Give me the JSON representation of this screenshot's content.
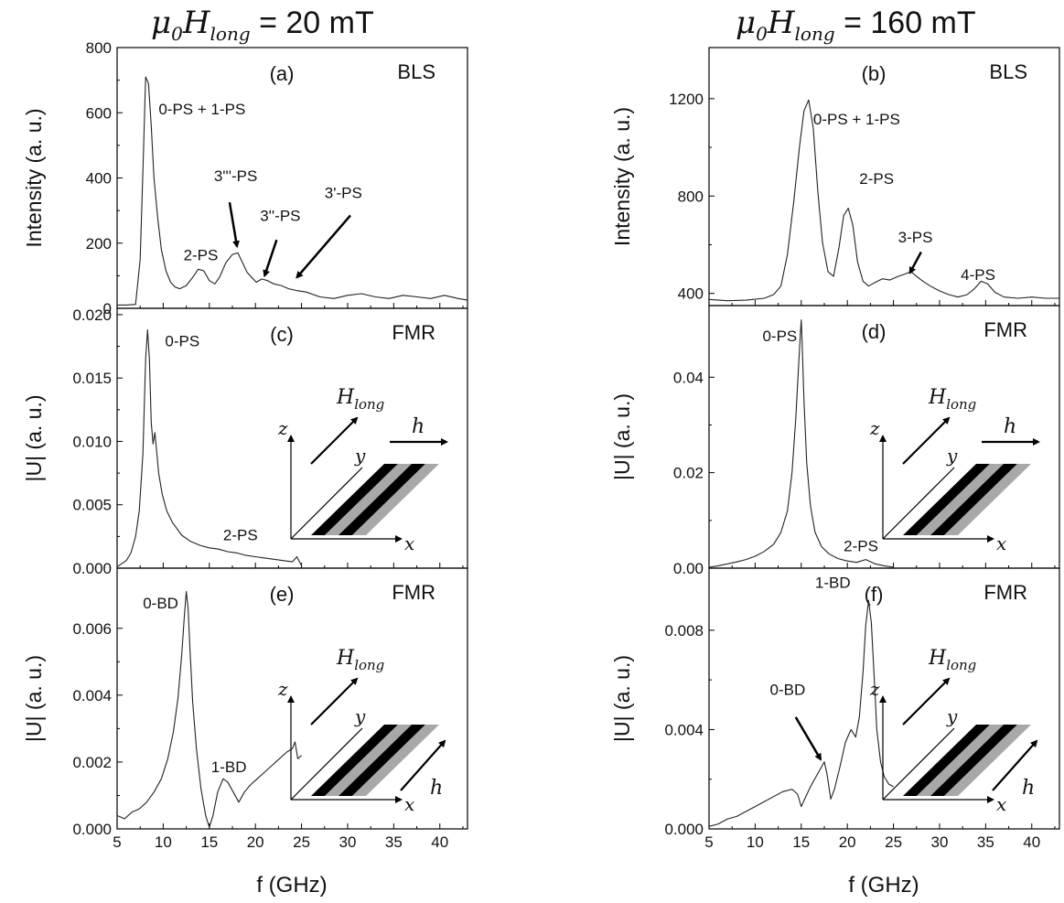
{
  "headings": {
    "left": {
      "mu": "μ",
      "sub0": "0",
      "H": "H",
      "sub": "long",
      "rest": " = 20 mT"
    },
    "right": {
      "mu": "μ",
      "sub0": "0",
      "H": "H",
      "sub": "long",
      "rest": " = 160 mT"
    }
  },
  "xlabel": "f (GHz)",
  "inset_labels": {
    "z": "z",
    "y": "y",
    "x": "x",
    "H": "H",
    "H_sub": "long",
    "h": "h"
  },
  "colors": {
    "line": "#222222",
    "stripe_dark": "#000000",
    "stripe_light": "#a8a8a8"
  },
  "chart_data": [
    {
      "id": "a",
      "type": "line",
      "panel_label": "(a)",
      "technique": "BLS",
      "ylabel": "Intensity (a. u.)",
      "xlim": [
        5,
        43
      ],
      "ylim": [
        0,
        800
      ],
      "xticks": [
        5,
        10,
        15,
        20,
        25,
        30,
        35,
        40
      ],
      "yticks": [
        0,
        200,
        400,
        600,
        800
      ],
      "ytick_labels": [
        "0",
        "200",
        "400",
        "600",
        "800"
      ],
      "series": [
        {
          "x": [
            5,
            6,
            7,
            7.5,
            7.8,
            8.1,
            8.4,
            8.7,
            9.0,
            9.4,
            9.8,
            10.3,
            10.8,
            11.3,
            11.8,
            12.5,
            13.2,
            13.8,
            14.4,
            15.0,
            15.6,
            16.1,
            16.8,
            17.5,
            18.1,
            18.6,
            19.1,
            19.6,
            20.1,
            20.7,
            21.3,
            22.0,
            22.8,
            23.6,
            24.4,
            25.5,
            27.0,
            28.5,
            30.0,
            31.5,
            33.0,
            34.5,
            36.0,
            37.5,
            39.0,
            40.5,
            42.0,
            43.0
          ],
          "y": [
            10,
            10,
            12,
            150,
            420,
            710,
            690,
            560,
            400,
            280,
            180,
            115,
            80,
            65,
            60,
            70,
            95,
            120,
            115,
            85,
            75,
            95,
            140,
            165,
            170,
            140,
            110,
            95,
            80,
            90,
            85,
            75,
            70,
            60,
            55,
            50,
            35,
            30,
            40,
            45,
            35,
            30,
            40,
            35,
            30,
            40,
            30,
            25
          ]
        }
      ],
      "annotations": [
        {
          "text": "0-PS + 1-PS",
          "x": 9.5,
          "y": 595
        },
        {
          "text": "2-PS",
          "x": 12.2,
          "y": 148
        },
        {
          "text": "3'''-PS",
          "x": 15.5,
          "y": 390,
          "arrow_to": [
            18.0,
            190
          ],
          "arrow_from": [
            17.2,
            325
          ]
        },
        {
          "text": "3''-PS",
          "x": 20.5,
          "y": 268,
          "arrow_to": [
            21.0,
            100
          ],
          "arrow_from": [
            22.3,
            210
          ]
        },
        {
          "text": "3'-PS",
          "x": 27.5,
          "y": 338,
          "arrow_to": [
            24.5,
            95
          ],
          "arrow_from": [
            30.3,
            285
          ]
        }
      ]
    },
    {
      "id": "b",
      "type": "line",
      "panel_label": "(b)",
      "technique": "BLS",
      "ylabel": "Intensity (a. u.)",
      "xlim": [
        5,
        43
      ],
      "ylim": [
        350,
        1410
      ],
      "xticks": [
        5,
        10,
        15,
        20,
        25,
        30,
        35,
        40
      ],
      "yticks": [
        400,
        800,
        1200
      ],
      "ytick_labels": [
        "400",
        "800",
        "1200"
      ],
      "series": [
        {
          "x": [
            5,
            7,
            9,
            11,
            12,
            12.8,
            13.5,
            14.2,
            14.8,
            15.3,
            15.8,
            16.3,
            16.8,
            17.3,
            17.9,
            18.5,
            19.1,
            19.6,
            20.1,
            20.6,
            21.1,
            21.7,
            22.3,
            23.0,
            23.8,
            24.6,
            25.5,
            26.3,
            26.9,
            27.5,
            28.2,
            29.0,
            30.0,
            31.0,
            32.0,
            33.0,
            33.8,
            34.5,
            35.2,
            36.0,
            37.0,
            38.5,
            40.0,
            41.5,
            43.0
          ],
          "y": [
            375,
            370,
            372,
            380,
            395,
            430,
            560,
            780,
            1000,
            1150,
            1195,
            1080,
            820,
            610,
            490,
            470,
            590,
            720,
            750,
            680,
            530,
            450,
            430,
            445,
            460,
            455,
            470,
            480,
            490,
            470,
            450,
            430,
            410,
            395,
            385,
            395,
            420,
            450,
            440,
            405,
            385,
            380,
            385,
            380,
            380
          ]
        }
      ],
      "annotations": [
        {
          "text": "0-PS + 1-PS",
          "x": 16.3,
          "y": 1095
        },
        {
          "text": "2-PS",
          "x": 21.3,
          "y": 850
        },
        {
          "text": "3-PS",
          "x": 25.5,
          "y": 610,
          "arrow_to": [
            26.8,
            485
          ],
          "arrow_from": [
            28.0,
            570
          ]
        },
        {
          "text": "4-PS",
          "x": 32.3,
          "y": 455
        }
      ]
    },
    {
      "id": "c",
      "type": "line",
      "panel_label": "(c)",
      "technique": "FMR",
      "ylabel": "|U| (a. u.)",
      "xlim": [
        5,
        43
      ],
      "ylim": [
        0,
        0.0205
      ],
      "xticks": [
        5,
        10,
        15,
        20,
        25,
        30,
        35,
        40
      ],
      "yticks": [
        0,
        0.005,
        0.01,
        0.015,
        0.02
      ],
      "ytick_labels": [
        "0.000",
        "0.005",
        "0.010",
        "0.015",
        "0.020"
      ],
      "series": [
        {
          "x": [
            5,
            6,
            6.5,
            7,
            7.4,
            7.8,
            8.1,
            8.3,
            8.5,
            8.7,
            8.9,
            9.1,
            9.3,
            9.5,
            9.9,
            10.4,
            11.0,
            12.0,
            13.0,
            14.0,
            15.0,
            16.0,
            17.0,
            18.0,
            19.0,
            20.0,
            21.0,
            22.0,
            23.0,
            24.0,
            24.5,
            25.0
          ],
          "y": [
            0.0001,
            0.0006,
            0.0012,
            0.0025,
            0.0045,
            0.009,
            0.0165,
            0.0188,
            0.0165,
            0.0115,
            0.0098,
            0.0107,
            0.0092,
            0.0075,
            0.0058,
            0.0045,
            0.0036,
            0.0026,
            0.0021,
            0.0018,
            0.0016,
            0.0015,
            0.0013,
            0.0012,
            0.001,
            0.0009,
            0.0008,
            0.0007,
            0.0006,
            0.0005,
            0.0009,
            0.0002
          ]
        }
      ],
      "annotations": [
        {
          "text": "0-PS",
          "x": 10.2,
          "y": 0.0175
        },
        {
          "text": "2-PS",
          "x": 16.5,
          "y": 0.0022
        }
      ],
      "inset": "h-along-x"
    },
    {
      "id": "d",
      "type": "line",
      "panel_label": "(d)",
      "technique": "FMR",
      "ylabel": "|U| (a. u.)",
      "xlim": [
        5,
        43
      ],
      "ylim": [
        0,
        0.055
      ],
      "xticks": [
        5,
        10,
        15,
        20,
        25,
        30,
        35,
        40
      ],
      "yticks": [
        0,
        0.02,
        0.04
      ],
      "ytick_labels": [
        "0.00",
        "0.02",
        "0.04"
      ],
      "series": [
        {
          "x": [
            5,
            6,
            7,
            8,
            9,
            10,
            11,
            12,
            12.8,
            13.5,
            14.0,
            14.4,
            14.7,
            14.9,
            15.0,
            15.1,
            15.3,
            15.6,
            16.0,
            16.5,
            17.2,
            18.0,
            19.0,
            20.0,
            21.0,
            22.0,
            23.0,
            24.0,
            25.0
          ],
          "y": [
            0.0002,
            0.0005,
            0.0009,
            0.0013,
            0.0018,
            0.0025,
            0.0035,
            0.005,
            0.0075,
            0.012,
            0.02,
            0.031,
            0.042,
            0.049,
            0.052,
            0.047,
            0.035,
            0.022,
            0.013,
            0.0075,
            0.0045,
            0.003,
            0.002,
            0.0015,
            0.0012,
            0.0018,
            0.0009,
            0.0005,
            0.0002
          ]
        }
      ],
      "annotations": [
        {
          "text": "0-PS",
          "x": 10.8,
          "y": 0.0475
        },
        {
          "text": "2-PS",
          "x": 19.6,
          "y": 0.0035
        }
      ],
      "inset": "h-along-x"
    },
    {
      "id": "e",
      "type": "line",
      "panel_label": "(e)",
      "technique": "FMR",
      "ylabel": "|U| (a. u.)",
      "xlim": [
        5,
        43
      ],
      "ylim": [
        0,
        0.0078
      ],
      "xticks": [
        5,
        10,
        15,
        20,
        25,
        30,
        35,
        40
      ],
      "yticks": [
        0,
        0.002,
        0.004,
        0.006
      ],
      "ytick_labels": [
        "0.000",
        "0.002",
        "0.004",
        "0.006"
      ],
      "series": [
        {
          "x": [
            5,
            5.8,
            6.6,
            7.4,
            8.2,
            9.0,
            9.8,
            10.5,
            11.1,
            11.6,
            12.0,
            12.3,
            12.5,
            12.7,
            12.9,
            13.2,
            13.6,
            14.1,
            14.6,
            15.0,
            15.4,
            15.9,
            16.5,
            17.0,
            17.6,
            18.2,
            18.8,
            19.4,
            20.2,
            21.0,
            21.8,
            22.6,
            23.4,
            24.0,
            24.3,
            24.6,
            25.0
          ],
          "y": [
            0.0004,
            0.0003,
            0.0005,
            0.0006,
            0.0008,
            0.0011,
            0.0015,
            0.0021,
            0.0029,
            0.0039,
            0.0052,
            0.0064,
            0.0071,
            0.0066,
            0.0054,
            0.0038,
            0.0024,
            0.0012,
            0.0004,
            5e-05,
            0.0004,
            0.0011,
            0.0015,
            0.0014,
            0.0011,
            0.0008,
            0.0011,
            0.0013,
            0.0015,
            0.0017,
            0.0019,
            0.0021,
            0.0023,
            0.0024,
            0.0026,
            0.0021,
            0.0022
          ]
        }
      ],
      "annotations": [
        {
          "text": "0-BD",
          "x": 7.8,
          "y": 0.0066
        },
        {
          "text": "1-BD",
          "x": 15.2,
          "y": 0.0017
        }
      ],
      "inset": "h-along-y"
    },
    {
      "id": "f",
      "type": "line",
      "panel_label": "(f)",
      "technique": "FMR",
      "ylabel": "|U| (a. u.)",
      "xlim": [
        5,
        43
      ],
      "ylim": [
        0,
        0.0105
      ],
      "xticks": [
        5,
        10,
        15,
        20,
        25,
        30,
        35,
        40
      ],
      "yticks": [
        0,
        0.004,
        0.008
      ],
      "ytick_labels": [
        "0.000",
        "0.004",
        "0.008"
      ],
      "series": [
        {
          "x": [
            5,
            6,
            7,
            8,
            9,
            10,
            11,
            12,
            13,
            14,
            14.6,
            15.0,
            15.5,
            16.0,
            16.6,
            17.2,
            17.5,
            17.8,
            18.2,
            18.6,
            19.2,
            19.8,
            20.4,
            20.9,
            21.3,
            21.7,
            22.0,
            22.3,
            22.6,
            22.9,
            23.2,
            23.6,
            24.0,
            24.5,
            25.0
          ],
          "y": [
            0.0001,
            0.0002,
            0.0004,
            0.0005,
            0.0007,
            0.0009,
            0.0011,
            0.0013,
            0.0015,
            0.0016,
            0.0014,
            0.0009,
            0.0013,
            0.0017,
            0.0021,
            0.0025,
            0.0027,
            0.0022,
            0.0012,
            0.0016,
            0.0025,
            0.0035,
            0.004,
            0.0037,
            0.0045,
            0.0063,
            0.0082,
            0.0092,
            0.0083,
            0.0062,
            0.004,
            0.0027,
            0.0021,
            0.0018,
            0.0017
          ]
        }
      ],
      "annotations": [
        {
          "text": "1-BD",
          "x": 16.5,
          "y": 0.0097
        },
        {
          "text": "0-BD",
          "x": 11.6,
          "y": 0.0054,
          "arrow_to": [
            17.1,
            0.0028
          ],
          "arrow_from": [
            14.4,
            0.0045
          ]
        }
      ],
      "inset": "h-along-y"
    }
  ]
}
